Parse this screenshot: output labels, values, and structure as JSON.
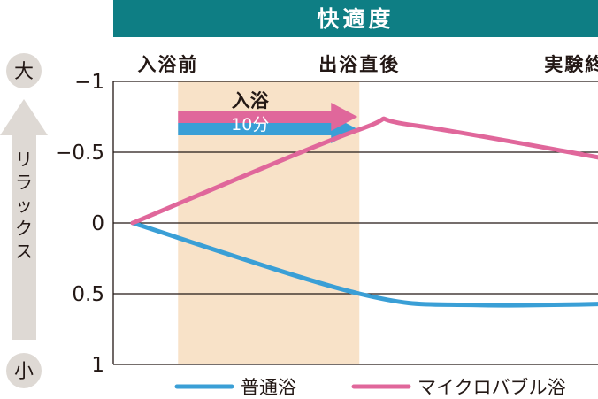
{
  "chart_data": {
    "type": "line",
    "title": "快適度",
    "x_phases": [
      "入浴前",
      "出浴直後",
      "実験終了前"
    ],
    "y_ticks": [
      "−1",
      "−0.5",
      "0",
      "0.5",
      "1"
    ],
    "ylim": [
      -1,
      1
    ],
    "y_inverted": true,
    "y_axis_label": "リラックス",
    "y_top_label": "大",
    "y_bottom_label": "小",
    "annotation": {
      "line1": "入浴",
      "line2": "10分"
    },
    "shaded_interval": [
      0.25,
      1.25
    ],
    "series": [
      {
        "name": "普通浴",
        "color": "#3a9fd6",
        "points": [
          [
            0,
            0
          ],
          [
            1.25,
            0.5
          ],
          [
            1.9,
            0.58
          ],
          [
            3,
            0.56
          ],
          [
            3.05,
            0.56
          ]
        ]
      },
      {
        "name": "マイクロバブル浴",
        "color": "#e0679b",
        "points": [
          [
            0,
            0
          ],
          [
            1.25,
            -0.66
          ],
          [
            1.55,
            -0.69
          ],
          [
            3.05,
            -0.35
          ]
        ]
      }
    ],
    "grid": true
  },
  "colors": {
    "title_bar": "#0e7e84",
    "shade": "#f8e2c8",
    "side_arrow": "#ded9d4",
    "side_circle": "#ded9d4",
    "grid": "#231815"
  }
}
